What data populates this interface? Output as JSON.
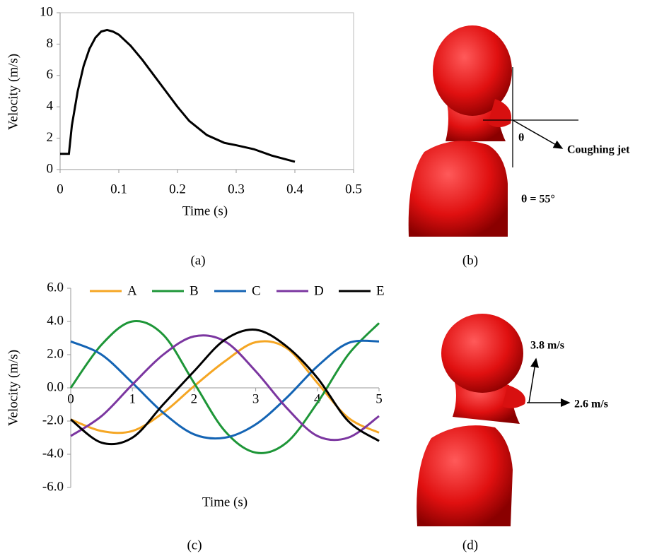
{
  "chart_data": [
    {
      "type": "line",
      "caption": "(a)",
      "xlabel": "Time (s)",
      "ylabel": "Velocity (m/s)",
      "frame": true,
      "x": [
        0,
        0.015,
        0.02,
        0.03,
        0.04,
        0.05,
        0.06,
        0.07,
        0.08,
        0.09,
        0.1,
        0.12,
        0.14,
        0.16,
        0.18,
        0.2,
        0.22,
        0.25,
        0.28,
        0.3,
        0.33,
        0.36,
        0.4
      ],
      "series": [
        {
          "color": "#000000",
          "values": [
            1,
            1,
            2.8,
            5,
            6.6,
            7.7,
            8.4,
            8.8,
            8.9,
            8.8,
            8.6,
            7.9,
            7,
            6,
            5,
            4,
            3.1,
            2.2,
            1.7,
            1.55,
            1.3,
            0.9,
            0.5
          ]
        }
      ],
      "xlim": [
        0,
        0.5
      ],
      "xticks": [
        0,
        0.1,
        0.2,
        0.3,
        0.4,
        0.5
      ],
      "ylim": [
        0,
        10
      ],
      "yticks": [
        0,
        2,
        4,
        6,
        8,
        10
      ]
    },
    {
      "type": "line",
      "caption": "(c)",
      "xlabel": "Time (s)",
      "ylabel": "Velocity (m/s)",
      "smooth": true,
      "legend": "top",
      "x": [
        0,
        0.5,
        1,
        1.5,
        2,
        2.5,
        3,
        3.5,
        4,
        4.5,
        5
      ],
      "series": [
        {
          "name": "A",
          "color": "#f5a623",
          "values": [
            -1.9,
            -2.6,
            -2.6,
            -1.5,
            0.1,
            1.6,
            2.75,
            2.4,
            0.3,
            -1.8,
            -2.7
          ]
        },
        {
          "name": "B",
          "color": "#1e9638",
          "values": [
            0,
            2.6,
            4,
            3.2,
            0.3,
            -2.6,
            -3.9,
            -3.3,
            -0.9,
            2,
            3.9
          ]
        },
        {
          "name": "C",
          "color": "#1464b4",
          "values": [
            2.8,
            2,
            0.3,
            -1.5,
            -2.8,
            -3,
            -2.2,
            -0.6,
            1.3,
            2.7,
            2.8
          ]
        },
        {
          "name": "D",
          "color": "#7b36a0",
          "values": [
            -2.9,
            -1.7,
            0.2,
            2,
            3.1,
            2.8,
            1,
            -1.2,
            -2.9,
            -3,
            -1.7
          ]
        },
        {
          "name": "E",
          "color": "#000000",
          "values": [
            -1.9,
            -3.3,
            -3,
            -1,
            1,
            2.9,
            3.5,
            2.5,
            0.6,
            -2,
            -3.2
          ]
        }
      ],
      "xlim": [
        0,
        5
      ],
      "xticks": [
        0,
        1,
        2,
        3,
        4,
        5
      ],
      "ylim": [
        -6,
        6
      ],
      "yticks": [
        {
          "value": -6,
          "label": "-6.0"
        },
        {
          "value": -4,
          "label": "-4.0"
        },
        {
          "value": -2,
          "label": "-2.0"
        },
        {
          "value": 0,
          "label": "0.0"
        },
        {
          "value": 2,
          "label": "2.0"
        },
        {
          "value": 4,
          "label": "4.0"
        },
        {
          "value": 6,
          "label": "6.0"
        }
      ]
    }
  ],
  "panels": {
    "b": {
      "caption": "(b)",
      "angle_symbol": "θ",
      "jet_label": "Coughing jet",
      "angle_label": "θ = 55°"
    },
    "d": {
      "caption": "(d)",
      "vertical_label": "3.8 m/s",
      "horizontal_label": "2.6 m/s"
    }
  }
}
